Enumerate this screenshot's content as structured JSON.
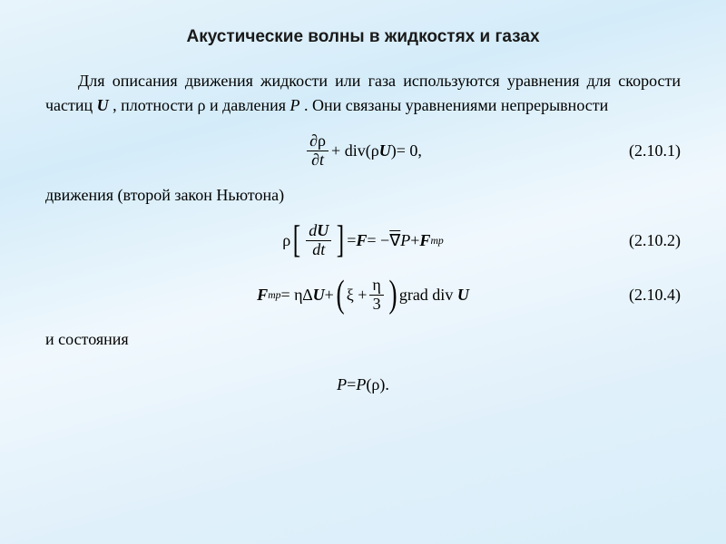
{
  "colors": {
    "bg_gradient_start": "#e8f4fb",
    "bg_gradient_mid": "#f0f8fd",
    "bg_gradient_end": "#d8eef9",
    "text": "#000000",
    "title": "#1a1a1a"
  },
  "typography": {
    "title_font": "Arial",
    "title_size_pt": 14,
    "title_weight": "bold",
    "body_font": "Times New Roman",
    "body_size_pt": 13,
    "equation_size_pt": 13
  },
  "title": "Акустические волны в жидкостях и газах",
  "para1_a": "Для описания движения жидкости или газа используются уравнения для скорости частиц ",
  "para1_var_U": "U",
  "para1_b": " , плотности ",
  "para1_var_rho": "ρ",
  "para1_c": " и давления ",
  "para1_var_P": "P",
  "para1_d": " . Они связаны уравнениями непрерывности",
  "eq1": {
    "number": "(2.10.1)",
    "frac_num": "∂ρ",
    "frac_den": "∂t",
    "plus": " + div",
    "lparen": "(",
    "arg": "ρU",
    "rparen": ")",
    "eq": " = 0",
    "comma": ","
  },
  "mid1": "движения (второй закон Ньютона)",
  "eq2": {
    "number": "(2.10.2)",
    "rho": "ρ",
    "lbr": "[",
    "frac_num": "dU",
    "frac_den": "dt",
    "rbr": "]",
    "eq1": " = ",
    "F": "F",
    "eq2": " = −",
    "nabla": "∇",
    "P": "P",
    "plus": " + ",
    "Ftr": "F",
    "tr_sub": "тр"
  },
  "eq3": {
    "number": "(2.10.4)",
    "Ftr": "F",
    "tr_sub": "тр",
    "eq": " = η∆",
    "U1": "U",
    "plus": " + ",
    "lpar": "(",
    "xi": "ξ + ",
    "frac_num": "η",
    "frac_den": "3",
    "rpar": ")",
    "grad": "grad  div",
    "U2": "U"
  },
  "mid2": "и состояния",
  "eq4": {
    "P1": "P",
    "eq": " = ",
    "P2": "P",
    "lpar": "(",
    "rho": "ρ",
    "rpar": ")",
    "dot": "."
  }
}
